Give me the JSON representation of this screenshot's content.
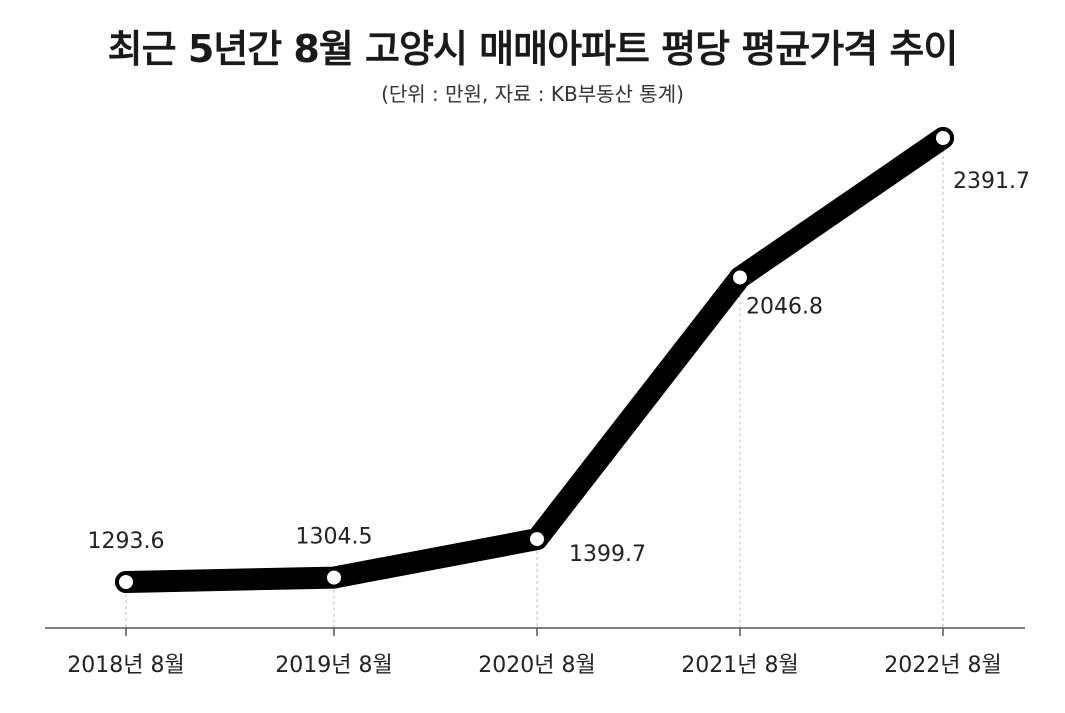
{
  "chart_data": {
    "type": "line",
    "title": "최근 5년간 8월 고양시 매매아파트 평당  평균가격 추이",
    "subtitle": "(단위 : 만원, 자료 : KB부동산 통계)",
    "categories": [
      "2018년 8월",
      "2019년 8월",
      "2020년 8월",
      "2021년 8월",
      "2022년 8월"
    ],
    "values": [
      1293.6,
      1304.5,
      1399.7,
      2046.8,
      2391.7
    ],
    "value_labels": [
      "1293.6",
      "1304.5",
      "1399.7",
      "2046.8",
      "2391.7"
    ],
    "xlabel": "",
    "ylabel": "",
    "grid": false,
    "line_color": "#000000"
  }
}
